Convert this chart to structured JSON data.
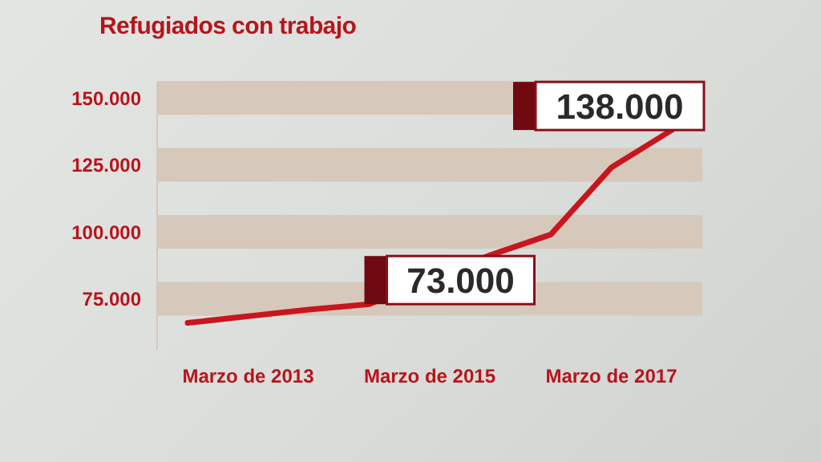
{
  "chart_data": {
    "type": "line",
    "title": "Refugiados con trabajo",
    "categories": [
      null,
      "Marzo de 2013",
      null,
      null,
      "Marzo de 2015",
      null,
      null,
      "Marzo de 2017",
      null
    ],
    "series": [
      {
        "color": "#c8161e",
        "values": [
          66000,
          68500,
          71000,
          73000,
          null,
          91300,
          99000,
          124000,
          138000
        ],
        "value_labels": [
          null,
          null,
          null,
          "73.000",
          null,
          null,
          null,
          null,
          "138.000"
        ]
      }
    ],
    "ylim": [
      56000,
      156000
    ],
    "yticks": [
      {
        "value": 75000,
        "label": "75.000"
      },
      {
        "value": 100000,
        "label": "100.000"
      },
      {
        "value": 125000,
        "label": "125.000"
      },
      {
        "value": 150000,
        "label": "150.000"
      }
    ],
    "grid": "y",
    "marker": "none",
    "line_style": "solid",
    "legend": false
  }
}
